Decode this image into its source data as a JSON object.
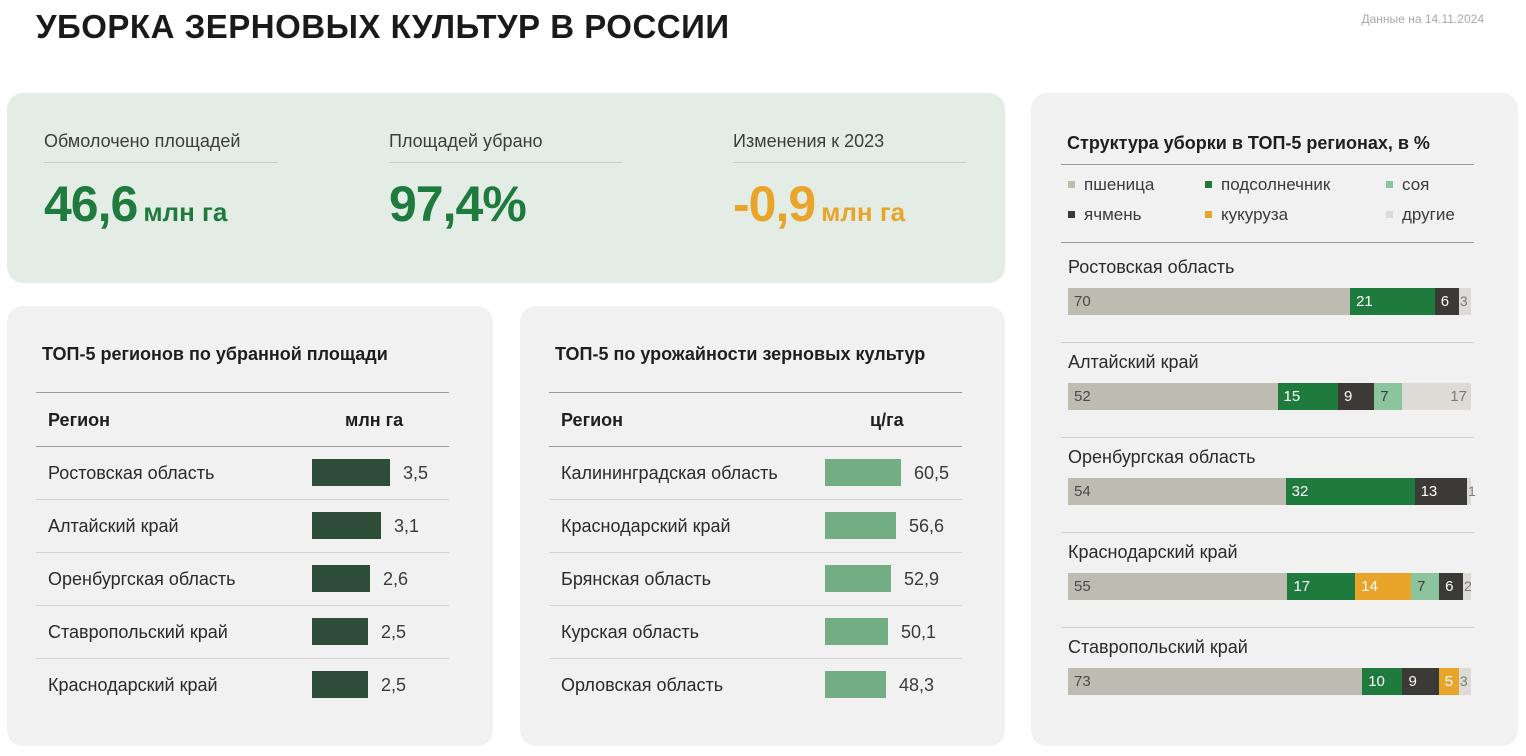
{
  "header": {
    "title": "УБОРКА ЗЕРНОВЫХ КУЛЬТУР В РОССИИ",
    "date_note": "Данные на 14.11.2024"
  },
  "kpis": [
    {
      "label": "Обмолочено площадей",
      "value": "46,6",
      "unit": "млн га",
      "color": "#1f7a3e"
    },
    {
      "label": "Площадей убрано",
      "value": "97,4%",
      "unit": "",
      "color": "#1f7a3e"
    },
    {
      "label": "Изменения к 2023",
      "value": "-0,9",
      "unit": "млн га",
      "color": "#e8a52a"
    }
  ],
  "chart_data": [
    {
      "type": "bar",
      "title": "ТОП-5 регионов по убранной площади",
      "column_headers": [
        "Регион",
        "млн га"
      ],
      "categories": [
        "Ростовская область",
        "Алтайский край",
        "Оренбургская область",
        "Ставропольский край",
        "Краснодарский край"
      ],
      "values": [
        3.5,
        3.1,
        2.6,
        2.5,
        2.5
      ],
      "value_labels": [
        "3,5",
        "3,1",
        "2,6",
        "2,5",
        "2,5"
      ],
      "bar_color": "#2e4d39"
    },
    {
      "type": "bar",
      "title": "ТОП-5 по урожайности зерновых культур",
      "column_headers": [
        "Регион",
        "ц/га"
      ],
      "categories": [
        "Калининградская область",
        "Краснодарский край",
        "Брянская область",
        "Курская область",
        "Орловская область"
      ],
      "values": [
        60.5,
        56.6,
        52.9,
        50.1,
        48.3
      ],
      "value_labels": [
        "60,5",
        "56,6",
        "52,9",
        "50,1",
        "48,3"
      ],
      "bar_color": "#73ad83"
    },
    {
      "type": "bar",
      "stacked": true,
      "title": "Структура уборки в ТОП-5 регионах, в %",
      "legend_placement": "top",
      "series_meta": [
        {
          "key": "wheat",
          "name": "пшеница",
          "color": "#bebcb0",
          "text_color": "#4a4a4a"
        },
        {
          "key": "sunflower",
          "name": "подсолнечник",
          "color": "#1f7a3e",
          "text_color": "#ffffff"
        },
        {
          "key": "soy",
          "name": "соя",
          "color": "#8cc49e",
          "text_color": "#3e3e3e"
        },
        {
          "key": "barley",
          "name": "ячмень",
          "color": "#3b3a37",
          "text_color": "#ffffff"
        },
        {
          "key": "corn",
          "name": "кукуруза",
          "color": "#e8a52a",
          "text_color": "#ffffff"
        },
        {
          "key": "other",
          "name": "другие",
          "color": "#dcdbd6",
          "text_color": "#7a7a7a"
        }
      ],
      "regions": [
        {
          "name": "Ростовская область",
          "segments": [
            {
              "key": "wheat",
              "value": 70
            },
            {
              "key": "sunflower",
              "value": 21
            },
            {
              "key": "barley",
              "value": 6
            },
            {
              "key": "other",
              "value": 3
            }
          ]
        },
        {
          "name": "Алтайский край",
          "segments": [
            {
              "key": "wheat",
              "value": 52
            },
            {
              "key": "sunflower",
              "value": 15
            },
            {
              "key": "barley",
              "value": 9
            },
            {
              "key": "soy",
              "value": 7
            },
            {
              "key": "other",
              "value": 17
            }
          ]
        },
        {
          "name": "Оренбургская область",
          "segments": [
            {
              "key": "wheat",
              "value": 54
            },
            {
              "key": "sunflower",
              "value": 32
            },
            {
              "key": "barley",
              "value": 13
            },
            {
              "key": "other",
              "value": 1
            }
          ]
        },
        {
          "name": "Краснодарский край",
          "segments": [
            {
              "key": "wheat",
              "value": 55
            },
            {
              "key": "sunflower",
              "value": 17
            },
            {
              "key": "corn",
              "value": 14
            },
            {
              "key": "soy",
              "value": 7
            },
            {
              "key": "barley",
              "value": 6
            },
            {
              "key": "other",
              "value": 2
            }
          ]
        },
        {
          "name": "Ставропольский край",
          "segments": [
            {
              "key": "wheat",
              "value": 73
            },
            {
              "key": "sunflower",
              "value": 10
            },
            {
              "key": "barley",
              "value": 9
            },
            {
              "key": "corn",
              "value": 5
            },
            {
              "key": "other",
              "value": 3
            }
          ]
        }
      ]
    }
  ]
}
